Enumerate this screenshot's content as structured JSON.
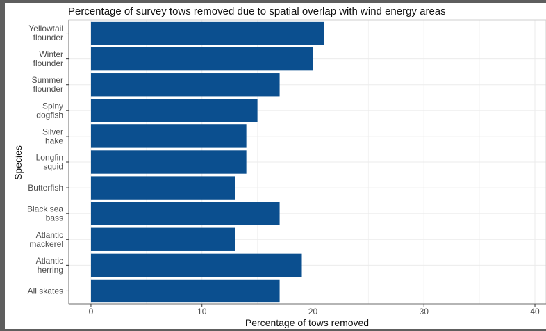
{
  "chart_data": {
    "type": "bar",
    "orientation": "horizontal",
    "title": "Percentage of survey tows removed due to spatial overlap with wind energy areas",
    "xlabel": "Percentage of tows removed",
    "ylabel": "Species",
    "categories": [
      [
        "Yellowtail",
        "flounder"
      ],
      [
        "Winter",
        "flounder"
      ],
      [
        "Summer",
        "flounder"
      ],
      [
        "Spiny",
        "dogfish"
      ],
      [
        "Silver",
        "hake"
      ],
      [
        "Longfin",
        "squid"
      ],
      [
        "Butterfish"
      ],
      [
        "Black sea",
        "bass"
      ],
      [
        "Atlantic",
        "mackerel"
      ],
      [
        "Atlantic",
        "herring"
      ],
      [
        "All skates"
      ]
    ],
    "values": [
      21,
      20,
      17,
      15,
      14,
      14,
      13,
      17,
      13,
      19,
      17
    ],
    "xlim": [
      -2,
      41
    ],
    "xticks": [
      0,
      10,
      20,
      30,
      40
    ],
    "grid": true,
    "bar_color": "#0b4f8f"
  }
}
